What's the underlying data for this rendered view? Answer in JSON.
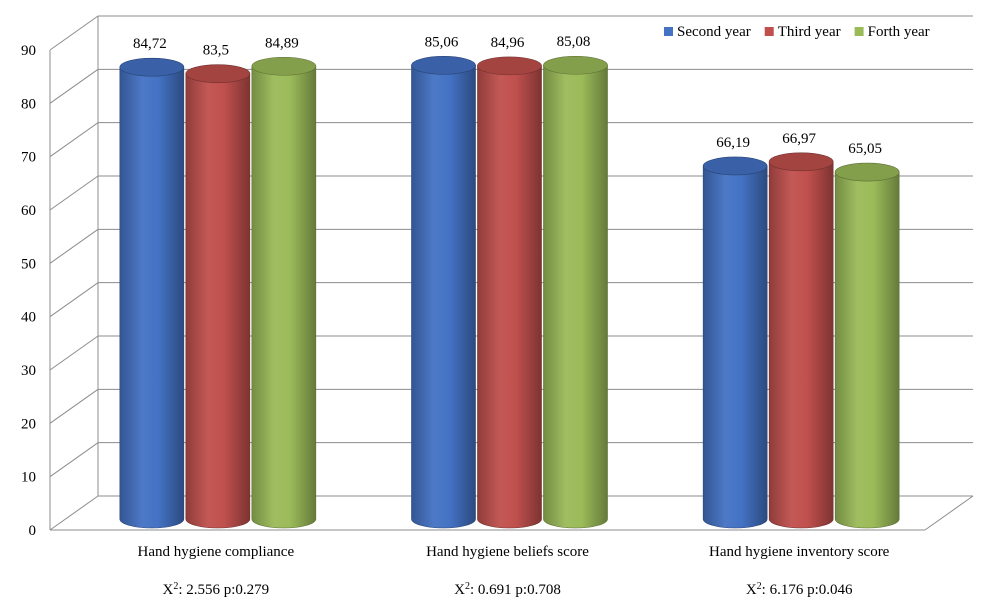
{
  "chart_data": {
    "type": "bar",
    "categories": [
      "Hand hygiene compliance",
      "Hand hygiene beliefs score",
      "Hand hygiene inventory score"
    ],
    "series": [
      {
        "name": "Second year",
        "values": [
          84.72,
          85.06,
          66.19
        ],
        "labels": [
          "84,72",
          "85,06",
          "66,19"
        ],
        "color": "#4472C4"
      },
      {
        "name": "Third year",
        "values": [
          83.5,
          84.96,
          66.97
        ],
        "labels": [
          "83,5",
          "84,96",
          "66,97"
        ],
        "color": "#C0504D"
      },
      {
        "name": "Forth year",
        "values": [
          84.89,
          85.08,
          65.05
        ],
        "labels": [
          "84,89",
          "85,08",
          "65,05"
        ],
        "color": "#9BBB59"
      }
    ],
    "ylim": [
      0,
      90
    ],
    "yticks": [
      0,
      10,
      20,
      30,
      40,
      50,
      60,
      70,
      80,
      90
    ],
    "grid": true,
    "legend_position": "top-right",
    "bar_shape": "3d-cylinder",
    "annotations": [
      {
        "prefix": "X",
        "sup": "2",
        "text": ": 2.556 p:0.279"
      },
      {
        "prefix": "X",
        "sup": "2",
        "text": ": 0.691 p:0.708"
      },
      {
        "prefix": "X",
        "sup": "2",
        "text": ": 6.176 p:0.046"
      }
    ]
  }
}
